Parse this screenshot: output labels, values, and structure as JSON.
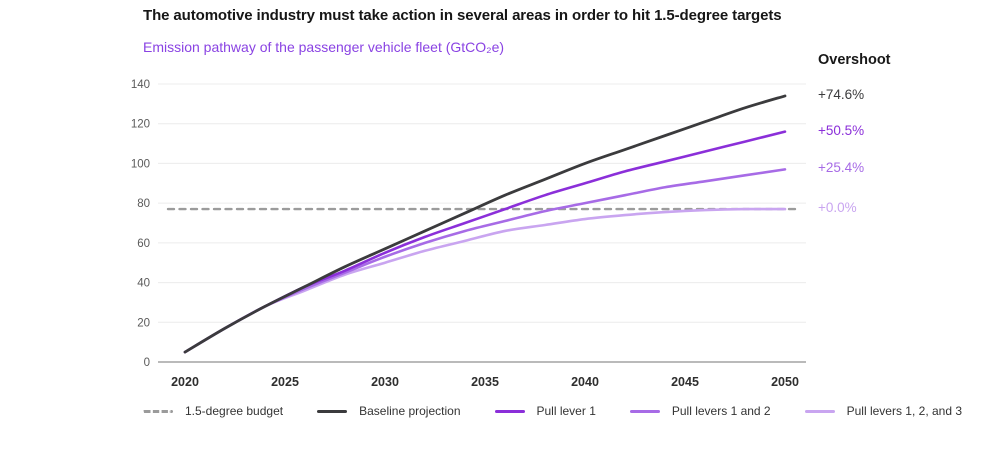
{
  "title": "The automotive industry must take action in several areas in order to hit 1.5-degree targets",
  "subtitle": "Emission pathway of the passenger vehicle fleet (GtCO₂e)",
  "overshoot": {
    "header": "Overshoot"
  },
  "colors": {
    "budget_gray": "#9b9b9b",
    "baseline_black": "#3b3b3d",
    "purple_strong": "#8b2fd9",
    "purple_medium": "#a76be6",
    "purple_light": "#c9a5f0",
    "subtitle_purple": "#8a43e3",
    "gridline": "#ececec"
  },
  "chart_data": {
    "type": "line",
    "title": "Emission pathway of the passenger vehicle fleet (GtCO₂e)",
    "xlabel": "",
    "ylabel": "GtCO₂e",
    "ylim": [
      0,
      140
    ],
    "grid": true,
    "legend_position": "bottom",
    "x": [
      2020,
      2022,
      2024,
      2026,
      2028,
      2030,
      2032,
      2034,
      2036,
      2038,
      2040,
      2042,
      2044,
      2046,
      2048,
      2050
    ],
    "x_ticks": [
      "2020",
      "2025",
      "2030",
      "2035",
      "2040",
      "2045",
      "2050"
    ],
    "y_ticks": [
      0,
      20,
      40,
      60,
      80,
      100,
      120,
      140
    ],
    "series": [
      {
        "name": "1.5-degree budget",
        "style": "dashed",
        "color": "#9b9b9b",
        "overshoot": null,
        "values": [
          77,
          77,
          77,
          77,
          77,
          77,
          77,
          77,
          77,
          77,
          77,
          77,
          77,
          77,
          77,
          77
        ]
      },
      {
        "name": "Baseline projection",
        "style": "solid",
        "color": "#3b3b3d",
        "overshoot": "+74.6%",
        "values": [
          5,
          17,
          28,
          38,
          48,
          57,
          66,
          75,
          84,
          92,
          100,
          107,
          114,
          121,
          128,
          134
        ]
      },
      {
        "name": "Pull lever 1",
        "style": "solid",
        "color": "#8b2fd9",
        "overshoot": "+50.5%",
        "values": [
          5,
          17,
          28,
          38,
          46,
          55,
          63,
          70,
          77,
          84,
          90,
          96,
          101,
          106,
          111,
          116
        ]
      },
      {
        "name": "Pull levers 1 and 2",
        "style": "solid",
        "color": "#a76be6",
        "overshoot": "+25.4%",
        "values": [
          5,
          17,
          28,
          37,
          45,
          53,
          60,
          66,
          71,
          76,
          80,
          84,
          88,
          91,
          94,
          97
        ]
      },
      {
        "name": "Pull levers 1, 2, and 3",
        "style": "solid",
        "color": "#c9a5f0",
        "overshoot": "+0.0%",
        "values": [
          5,
          17,
          28,
          36,
          44,
          50,
          56,
          61,
          66,
          69,
          72,
          74,
          75.5,
          76.5,
          77,
          77
        ]
      }
    ]
  }
}
